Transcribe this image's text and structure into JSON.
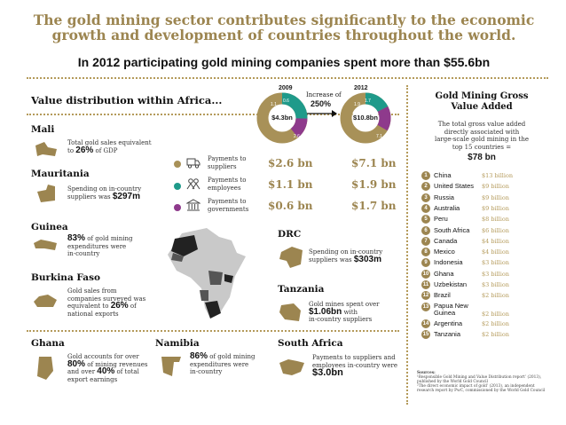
{
  "header": {
    "headline_line1": "The gold mining sector contributes significantly to the economic",
    "headline_line2": "growth and development of countries throughout the world.",
    "subhead": "In 2012 participating gold mining companies spent more than $55.6bn"
  },
  "value_distribution": {
    "title": "Value distribution within Africa...",
    "year_2009": "2009",
    "year_2012": "2012",
    "increase_label": "Increase of",
    "increase_value": "250%",
    "total_2009": "$4.3bn",
    "total_2012": "$10.8bn",
    "slices_2009": [
      "1.1",
      "0.6",
      "2.6"
    ],
    "slices_2012": [
      "1.9",
      "1.7",
      "7.1"
    ],
    "rows": [
      {
        "label_line1": "Payments to",
        "label_line2": "suppliers",
        "v2009": "$2.6 bn",
        "v2012": "$7.1 bn",
        "color": "#a89158"
      },
      {
        "label_line1": "Payments to",
        "label_line2": "employees",
        "v2009": "$1.1 bn",
        "v2012": "$1.9 bn",
        "color": "#1f9a8a"
      },
      {
        "label_line1": "Payments to",
        "label_line2": "governments",
        "v2009": "$0.6 bn",
        "v2012": "$1.7 bn",
        "color": "#8e3a8c"
      }
    ]
  },
  "countries": {
    "mali": {
      "name": "Mali",
      "line1": "Total gold sales equivalent",
      "line2_pre": "to ",
      "line2_big": "26%",
      "line2_post": " of GDP"
    },
    "mauritania": {
      "name": "Mauritania",
      "line1": "Spending on in-country",
      "line2_pre": "suppliers was ",
      "line2_big": "$297m"
    },
    "guinea": {
      "name": "Guinea",
      "big": "83%",
      "line1_post": " of gold mining",
      "line2": "expenditures were",
      "line3": "in-country"
    },
    "burkina": {
      "name": "Burkina Faso",
      "line1": "Gold sales from",
      "line2": "companies surveyed was",
      "line3_pre": "equivalent to ",
      "line3_big": "26%",
      "line3_post": " of",
      "line4": "national exports"
    },
    "ghana": {
      "name": "Ghana",
      "line1": "Gold accounts for over",
      "line2_big": "80%",
      "line2_post": " of mining revenues",
      "line3_pre": "and over ",
      "line3_big": "40%",
      "line3_post": " of total",
      "line4": "export earnings"
    },
    "namibia": {
      "name": "Namibia",
      "big": "86%",
      "line1_post": " of gold mining",
      "line2": "expenditures were",
      "line3": "in-country"
    },
    "drc": {
      "name": "DRC",
      "line1": "Spending on in-country",
      "line2_pre": "suppliers was ",
      "line2_big": "$303m"
    },
    "tanzania": {
      "name": "Tanzania",
      "line1": "Gold mines spent over",
      "line2_big": "$1.06bn",
      "line2_post": " with",
      "line3": "in-country suppliers"
    },
    "south_africa": {
      "name": "South Africa",
      "line1": "Payments to suppliers and",
      "line2": "employees in-country were",
      "big": "$3.0bn"
    }
  },
  "gva": {
    "title_line1": "Gold Mining Gross",
    "title_line2": "Value Added",
    "desc_line1": "The total gross value added",
    "desc_line2": "directly associated with",
    "desc_line3": "large-scale gold mining in the",
    "desc_line4": "top 15 countries =",
    "total": "$78 bn",
    "ranking": [
      {
        "n": "1",
        "country": "China",
        "value": "$13 billion"
      },
      {
        "n": "2",
        "country": "United States",
        "value": "$9 billion"
      },
      {
        "n": "3",
        "country": "Russia",
        "value": "$9 billion"
      },
      {
        "n": "4",
        "country": "Australia",
        "value": "$9 billion"
      },
      {
        "n": "5",
        "country": "Peru",
        "value": "$8 billion"
      },
      {
        "n": "6",
        "country": "South Africa",
        "value": "$6 billion"
      },
      {
        "n": "7",
        "country": "Canada",
        "value": "$4 billion"
      },
      {
        "n": "8",
        "country": "Mexico",
        "value": "$4 billion"
      },
      {
        "n": "9",
        "country": "Indonesia",
        "value": "$3 billion"
      },
      {
        "n": "10",
        "country": "Ghana",
        "value": "$3 billion"
      },
      {
        "n": "11",
        "country": "Uzbekistan",
        "value": "$3 billion"
      },
      {
        "n": "12",
        "country": "Brazil",
        "value": "$2 billion"
      },
      {
        "n": "13",
        "country": "Papua New Guinea",
        "value": "$2 billion"
      },
      {
        "n": "14",
        "country": "Argentina",
        "value": "$2 billion"
      },
      {
        "n": "15",
        "country": "Tanzania",
        "value": "$2 billion"
      }
    ],
    "sources_title": "Sources:",
    "source1_line1": "¹Responsible Gold Mining and Value Distribution report’ (2013),",
    "source1_line2": "published by the World Gold Council",
    "source2_line1": "²The direct economic impact of gold’ (2013), an independent",
    "source2_line2": "research report by PwC, commissioned by the World Gold Council"
  },
  "colors": {
    "gold": "#9c8550",
    "teal": "#1f9a8a",
    "purple": "#8e3a8c"
  }
}
